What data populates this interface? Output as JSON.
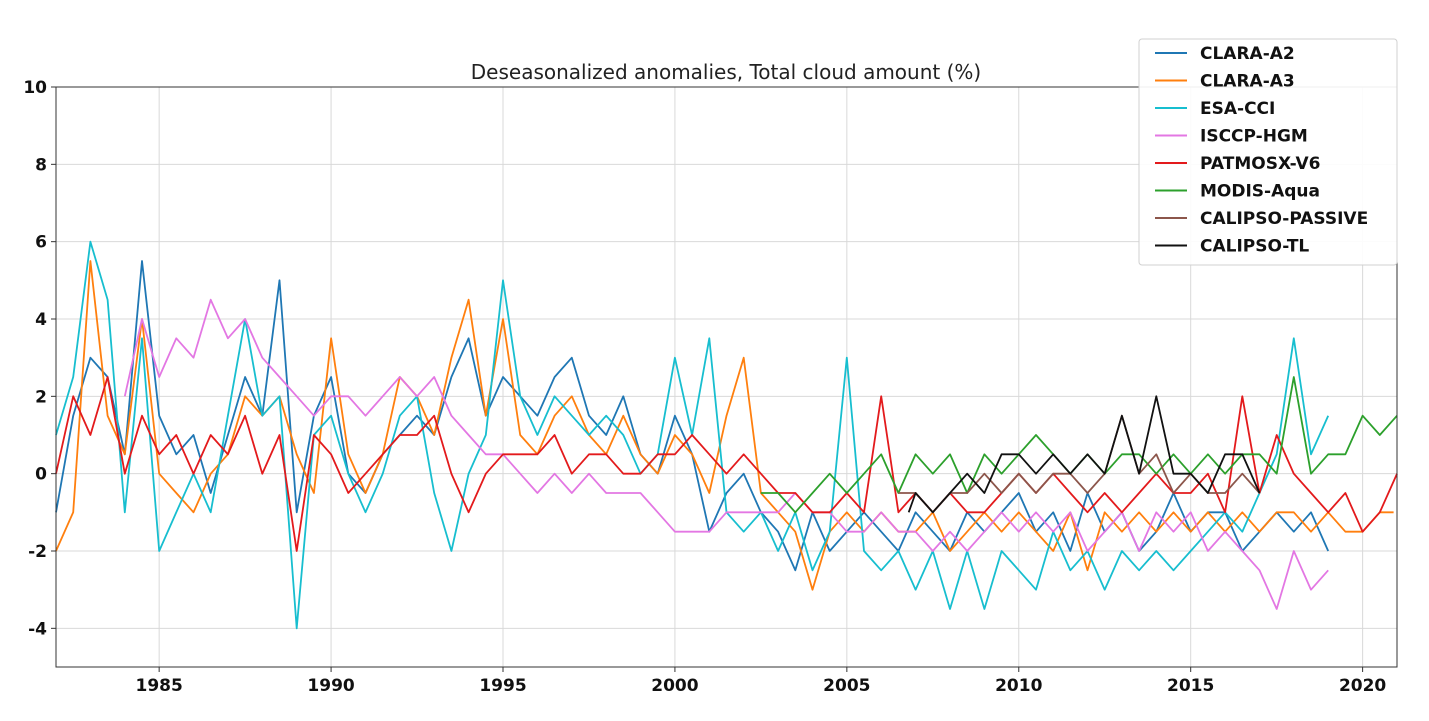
{
  "chart_data": {
    "type": "line",
    "title": "Deseasonalized anomalies, Total cloud amount (%)",
    "xlabel": "",
    "ylabel": "",
    "xlim": [
      1982.0,
      2021.0
    ],
    "ylim": [
      -5,
      10
    ],
    "xticks": [
      1985,
      1990,
      1995,
      2000,
      2005,
      2010,
      2015,
      2020
    ],
    "yticks": [
      -4,
      -2,
      0,
      2,
      4,
      6,
      8,
      10
    ],
    "grid": true,
    "legend_position": "top-right",
    "series": [
      {
        "name": "CLARA-A2",
        "color": "#1f77b4",
        "x": [
          1982.0,
          1982.5,
          1983.0,
          1983.5,
          1984.0,
          1984.5,
          1985.0,
          1985.5,
          1986.0,
          1986.5,
          1987.0,
          1987.5,
          1988.0,
          1988.5,
          1989.0,
          1989.5,
          1990.0,
          1990.5,
          1991.0,
          1991.5,
          1992.0,
          1992.5,
          1993.0,
          1993.5,
          1994.0,
          1994.5,
          1995.0,
          1995.5,
          1996.0,
          1996.5,
          1997.0,
          1997.5,
          1998.0,
          1998.5,
          1999.0,
          1999.5,
          2000.0,
          2000.5,
          2001.0,
          2001.5,
          2002.0,
          2002.5,
          2003.0,
          2003.5,
          2004.0,
          2004.5,
          2005.0,
          2005.5,
          2006.0,
          2006.5,
          2007.0,
          2007.5,
          2008.0,
          2008.5,
          2009.0,
          2009.5,
          2010.0,
          2010.5,
          2011.0,
          2011.5,
          2012.0,
          2012.5,
          2013.0,
          2013.5,
          2014.0,
          2014.5,
          2015.0,
          2015.5,
          2016.0,
          2016.5,
          2017.0,
          2017.5,
          2018.0,
          2018.5,
          2019.0
        ],
        "y": [
          -1.0,
          1.5,
          3.0,
          2.5,
          0.5,
          5.5,
          1.5,
          0.5,
          1.0,
          -0.5,
          1.0,
          2.5,
          1.5,
          5.0,
          -1.0,
          1.5,
          2.5,
          0.0,
          -0.5,
          0.5,
          1.0,
          1.5,
          1.0,
          2.5,
          3.5,
          1.5,
          2.5,
          2.0,
          1.5,
          2.5,
          3.0,
          1.5,
          1.0,
          2.0,
          0.5,
          0.0,
          1.5,
          0.5,
          -1.5,
          -0.5,
          0.0,
          -1.0,
          -1.5,
          -2.5,
          -1.0,
          -2.0,
          -1.5,
          -1.0,
          -1.5,
          -2.0,
          -1.0,
          -1.5,
          -2.0,
          -1.0,
          -1.5,
          -1.0,
          -0.5,
          -1.5,
          -1.0,
          -2.0,
          -0.5,
          -1.5,
          -1.0,
          -2.0,
          -1.5,
          -0.5,
          -1.5,
          -1.0,
          -1.0,
          -2.0,
          -1.5,
          -1.0,
          -1.5,
          -1.0,
          -2.0
        ]
      },
      {
        "name": "CLARA-A3",
        "color": "#ff7f0e",
        "x": [
          1982.0,
          1982.5,
          1983.0,
          1983.5,
          1984.0,
          1984.5,
          1985.0,
          1985.5,
          1986.0,
          1986.5,
          1987.0,
          1987.5,
          1988.0,
          1988.5,
          1989.0,
          1989.5,
          1990.0,
          1990.5,
          1991.0,
          1991.5,
          1992.0,
          1992.5,
          1993.0,
          1993.5,
          1994.0,
          1994.5,
          1995.0,
          1995.5,
          1996.0,
          1996.5,
          1997.0,
          1997.5,
          1998.0,
          1998.5,
          1999.0,
          1999.5,
          2000.0,
          2000.5,
          2001.0,
          2001.5,
          2002.0,
          2002.5,
          2003.0,
          2003.5,
          2004.0,
          2004.5,
          2005.0,
          2005.5,
          2006.0,
          2006.5,
          2007.0,
          2007.5,
          2008.0,
          2008.5,
          2009.0,
          2009.5,
          2010.0,
          2010.5,
          2011.0,
          2011.5,
          2012.0,
          2012.5,
          2013.0,
          2013.5,
          2014.0,
          2014.5,
          2015.0,
          2015.5,
          2016.0,
          2016.5,
          2017.0,
          2017.5,
          2018.0,
          2018.5,
          2019.0,
          2019.5,
          2020.0,
          2020.5,
          2020.9
        ],
        "y": [
          -2.0,
          -1.0,
          5.5,
          1.5,
          0.5,
          4.0,
          0.0,
          -0.5,
          -1.0,
          0.0,
          0.5,
          2.0,
          1.5,
          2.0,
          0.5,
          -0.5,
          3.5,
          0.5,
          -0.5,
          0.5,
          2.5,
          2.0,
          1.0,
          3.0,
          4.5,
          1.5,
          4.0,
          1.0,
          0.5,
          1.5,
          2.0,
          1.0,
          0.5,
          1.5,
          0.5,
          0.0,
          1.0,
          0.5,
          -0.5,
          1.5,
          3.0,
          -0.5,
          -1.0,
          -1.5,
          -3.0,
          -1.5,
          -1.0,
          -1.5,
          -1.0,
          -1.5,
          -1.5,
          -1.0,
          -2.0,
          -1.5,
          -1.0,
          -1.5,
          -1.0,
          -1.5,
          -2.0,
          -1.0,
          -2.5,
          -1.0,
          -1.5,
          -1.0,
          -1.5,
          -1.0,
          -1.5,
          -1.0,
          -1.5,
          -1.0,
          -1.5,
          -1.0,
          -1.0,
          -1.5,
          -1.0,
          -1.5,
          -1.5,
          -1.0,
          -1.0
        ]
      },
      {
        "name": "ESA-CCI",
        "color": "#17becf",
        "x": [
          1982.0,
          1982.5,
          1983.0,
          1983.5,
          1984.0,
          1984.5,
          1985.0,
          1985.5,
          1986.0,
          1986.5,
          1987.0,
          1987.5,
          1988.0,
          1988.5,
          1989.0,
          1989.5,
          1990.0,
          1990.5,
          1991.0,
          1991.5,
          1992.0,
          1992.5,
          1993.0,
          1993.5,
          1994.0,
          1994.5,
          1995.0,
          1995.5,
          1996.0,
          1996.5,
          1997.0,
          1997.5,
          1998.0,
          1998.5,
          1999.0,
          1999.5,
          2000.0,
          2000.5,
          2001.0,
          2001.5,
          2002.0,
          2002.5,
          2003.0,
          2003.5,
          2004.0,
          2004.5,
          2005.0,
          2005.5,
          2006.0,
          2006.5,
          2007.0,
          2007.5,
          2008.0,
          2008.5,
          2009.0,
          2009.5,
          2010.0,
          2010.5,
          2011.0,
          2011.5,
          2012.0,
          2012.5,
          2013.0,
          2013.5,
          2014.0,
          2014.5,
          2015.0,
          2015.5,
          2016.0,
          2016.5,
          2017.0,
          2017.5,
          2018.0,
          2018.5,
          2019.0
        ],
        "y": [
          1.0,
          2.5,
          6.0,
          4.5,
          -1.0,
          3.5,
          -2.0,
          -1.0,
          0.0,
          -1.0,
          1.5,
          4.0,
          1.5,
          2.0,
          -4.0,
          1.0,
          1.5,
          0.0,
          -1.0,
          0.0,
          1.5,
          2.0,
          -0.5,
          -2.0,
          0.0,
          1.0,
          5.0,
          2.0,
          1.0,
          2.0,
          1.5,
          1.0,
          1.5,
          1.0,
          0.0,
          0.5,
          3.0,
          1.0,
          3.5,
          -1.0,
          -1.5,
          -1.0,
          -2.0,
          -1.0,
          -2.5,
          -1.5,
          3.0,
          -2.0,
          -2.5,
          -2.0,
          -3.0,
          -2.0,
          -3.5,
          -2.0,
          -3.5,
          -2.0,
          -2.5,
          -3.0,
          -1.5,
          -2.5,
          -2.0,
          -3.0,
          -2.0,
          -2.5,
          -2.0,
          -2.5,
          -2.0,
          -1.5,
          -1.0,
          -1.5,
          -0.5,
          0.5,
          3.5,
          0.5,
          1.5
        ]
      },
      {
        "name": "ISCCP-HGM",
        "color": "#e377e3",
        "x": [
          1984.0,
          1984.5,
          1985.0,
          1985.5,
          1986.0,
          1986.5,
          1987.0,
          1987.5,
          1988.0,
          1988.5,
          1989.0,
          1989.5,
          1990.0,
          1990.5,
          1991.0,
          1991.5,
          1992.0,
          1992.5,
          1993.0,
          1993.5,
          1994.0,
          1994.5,
          1995.0,
          1995.5,
          1996.0,
          1996.5,
          1997.0,
          1997.5,
          1998.0,
          1998.5,
          1999.0,
          1999.5,
          2000.0,
          2000.5,
          2001.0,
          2001.5,
          2002.0,
          2002.5,
          2003.0,
          2003.5,
          2004.0,
          2004.5,
          2005.0,
          2005.5,
          2006.0,
          2006.5,
          2007.0,
          2007.5,
          2008.0,
          2008.5,
          2009.0,
          2009.5,
          2010.0,
          2010.5,
          2011.0,
          2011.5,
          2012.0,
          2012.5,
          2013.0,
          2013.5,
          2014.0,
          2014.5,
          2015.0,
          2015.5,
          2016.0,
          2016.5,
          2017.0,
          2017.5,
          2018.0,
          2018.5,
          2019.0
        ],
        "y": [
          2.0,
          4.0,
          2.5,
          3.5,
          3.0,
          4.5,
          3.5,
          4.0,
          3.0,
          2.5,
          2.0,
          1.5,
          2.0,
          2.0,
          1.5,
          2.0,
          2.5,
          2.0,
          2.5,
          1.5,
          1.0,
          0.5,
          0.5,
          0.0,
          -0.5,
          0.0,
          -0.5,
          0.0,
          -0.5,
          -0.5,
          -0.5,
          -1.0,
          -1.5,
          -1.5,
          -1.5,
          -1.0,
          -1.0,
          -1.0,
          -1.0,
          -0.5,
          -1.0,
          -1.0,
          -1.5,
          -1.5,
          -1.0,
          -1.5,
          -1.5,
          -2.0,
          -1.5,
          -2.0,
          -1.5,
          -1.0,
          -1.5,
          -1.0,
          -1.5,
          -1.0,
          -2.0,
          -1.5,
          -1.0,
          -2.0,
          -1.0,
          -1.5,
          -1.0,
          -2.0,
          -1.5,
          -2.0,
          -2.5,
          -3.5,
          -2.0,
          -3.0,
          -2.5
        ]
      },
      {
        "name": "PATMOSX-V6",
        "color": "#e31a1c",
        "x": [
          1982.0,
          1982.5,
          1983.0,
          1983.5,
          1984.0,
          1984.5,
          1985.0,
          1985.5,
          1986.0,
          1986.5,
          1987.0,
          1987.5,
          1988.0,
          1988.5,
          1989.0,
          1989.5,
          1990.0,
          1990.5,
          1991.0,
          1991.5,
          1992.0,
          1992.5,
          1993.0,
          1993.5,
          1994.0,
          1994.5,
          1995.0,
          1995.5,
          1996.0,
          1996.5,
          1997.0,
          1997.5,
          1998.0,
          1998.5,
          1999.0,
          1999.5,
          2000.0,
          2000.5,
          2001.0,
          2001.5,
          2002.0,
          2002.5,
          2003.0,
          2003.5,
          2004.0,
          2004.5,
          2005.0,
          2005.5,
          2006.0,
          2006.5,
          2007.0,
          2007.5,
          2008.0,
          2008.5,
          2009.0,
          2009.5,
          2010.0,
          2010.5,
          2011.0,
          2011.5,
          2012.0,
          2012.5,
          2013.0,
          2013.5,
          2014.0,
          2014.5,
          2015.0,
          2015.5,
          2016.0,
          2016.5,
          2017.0,
          2017.5,
          2018.0,
          2018.5,
          2019.0,
          2019.5,
          2020.0,
          2020.5,
          2021.0
        ],
        "y": [
          0.0,
          2.0,
          1.0,
          2.5,
          0.0,
          1.5,
          0.5,
          1.0,
          0.0,
          1.0,
          0.5,
          1.5,
          0.0,
          1.0,
          -2.0,
          1.0,
          0.5,
          -0.5,
          0.0,
          0.5,
          1.0,
          1.0,
          1.5,
          0.0,
          -1.0,
          0.0,
          0.5,
          0.5,
          0.5,
          1.0,
          0.0,
          0.5,
          0.5,
          0.0,
          0.0,
          0.5,
          0.5,
          1.0,
          0.5,
          0.0,
          0.5,
          0.0,
          -0.5,
          -0.5,
          -1.0,
          -1.0,
          -0.5,
          -1.0,
          2.0,
          -1.0,
          -0.5,
          -1.0,
          -0.5,
          -1.0,
          -1.0,
          -0.5,
          0.0,
          -0.5,
          0.0,
          -0.5,
          -1.0,
          -0.5,
          -1.0,
          -0.5,
          0.0,
          -0.5,
          -0.5,
          0.0,
          -1.0,
          2.0,
          -0.5,
          1.0,
          0.0,
          -0.5,
          -1.0,
          -0.5,
          -1.5,
          -1.0,
          0.0
        ]
      },
      {
        "name": "MODIS-Aqua",
        "color": "#2ca02c",
        "x": [
          2002.5,
          2003.0,
          2003.5,
          2004.0,
          2004.5,
          2005.0,
          2005.5,
          2006.0,
          2006.5,
          2007.0,
          2007.5,
          2008.0,
          2008.5,
          2009.0,
          2009.5,
          2010.0,
          2010.5,
          2011.0,
          2011.5,
          2012.0,
          2012.5,
          2013.0,
          2013.5,
          2014.0,
          2014.5,
          2015.0,
          2015.5,
          2016.0,
          2016.5,
          2017.0,
          2017.5,
          2018.0,
          2018.5,
          2019.0,
          2019.5,
          2020.0,
          2020.5,
          2021.0
        ],
        "y": [
          -0.5,
          -0.5,
          -1.0,
          -0.5,
          0.0,
          -0.5,
          0.0,
          0.5,
          -0.5,
          0.5,
          0.0,
          0.5,
          -0.5,
          0.5,
          0.0,
          0.5,
          1.0,
          0.5,
          0.0,
          0.5,
          0.0,
          0.5,
          0.5,
          0.0,
          0.5,
          0.0,
          0.5,
          0.0,
          0.5,
          0.5,
          0.0,
          2.5,
          0.0,
          0.5,
          0.5,
          1.5,
          1.0,
          1.5
        ]
      },
      {
        "name": "CALIPSO-PASSIVE",
        "color": "#8c564b",
        "x": [
          2006.5,
          2007.0,
          2007.5,
          2008.0,
          2008.5,
          2009.0,
          2009.5,
          2010.0,
          2010.5,
          2011.0,
          2011.5,
          2012.0,
          2012.5,
          2013.0,
          2013.5,
          2014.0,
          2014.5,
          2015.0,
          2015.5,
          2016.0,
          2016.5,
          2017.0
        ],
        "y": [
          -0.5,
          -0.5,
          -1.0,
          -0.5,
          -0.5,
          0.0,
          -0.5,
          0.0,
          -0.5,
          0.0,
          0.0,
          -0.5,
          0.0,
          1.5,
          0.0,
          0.5,
          -0.5,
          0.0,
          -0.5,
          -0.5,
          0.0,
          -0.5
        ]
      },
      {
        "name": "CALIPSO-TL",
        "color": "#111111",
        "x": [
          2006.8,
          2007.0,
          2007.5,
          2008.0,
          2008.5,
          2009.0,
          2009.5,
          2010.0,
          2010.5,
          2011.0,
          2011.5,
          2012.0,
          2012.5,
          2013.0,
          2013.5,
          2014.0,
          2014.5,
          2015.0,
          2015.5,
          2016.0,
          2016.5,
          2017.0
        ],
        "y": [
          -1.0,
          -0.5,
          -1.0,
          -0.5,
          0.0,
          -0.5,
          0.5,
          0.5,
          0.0,
          0.5,
          0.0,
          0.5,
          0.0,
          1.5,
          0.0,
          2.0,
          0.0,
          0.0,
          -0.5,
          0.5,
          0.5,
          -0.5
        ]
      }
    ]
  }
}
